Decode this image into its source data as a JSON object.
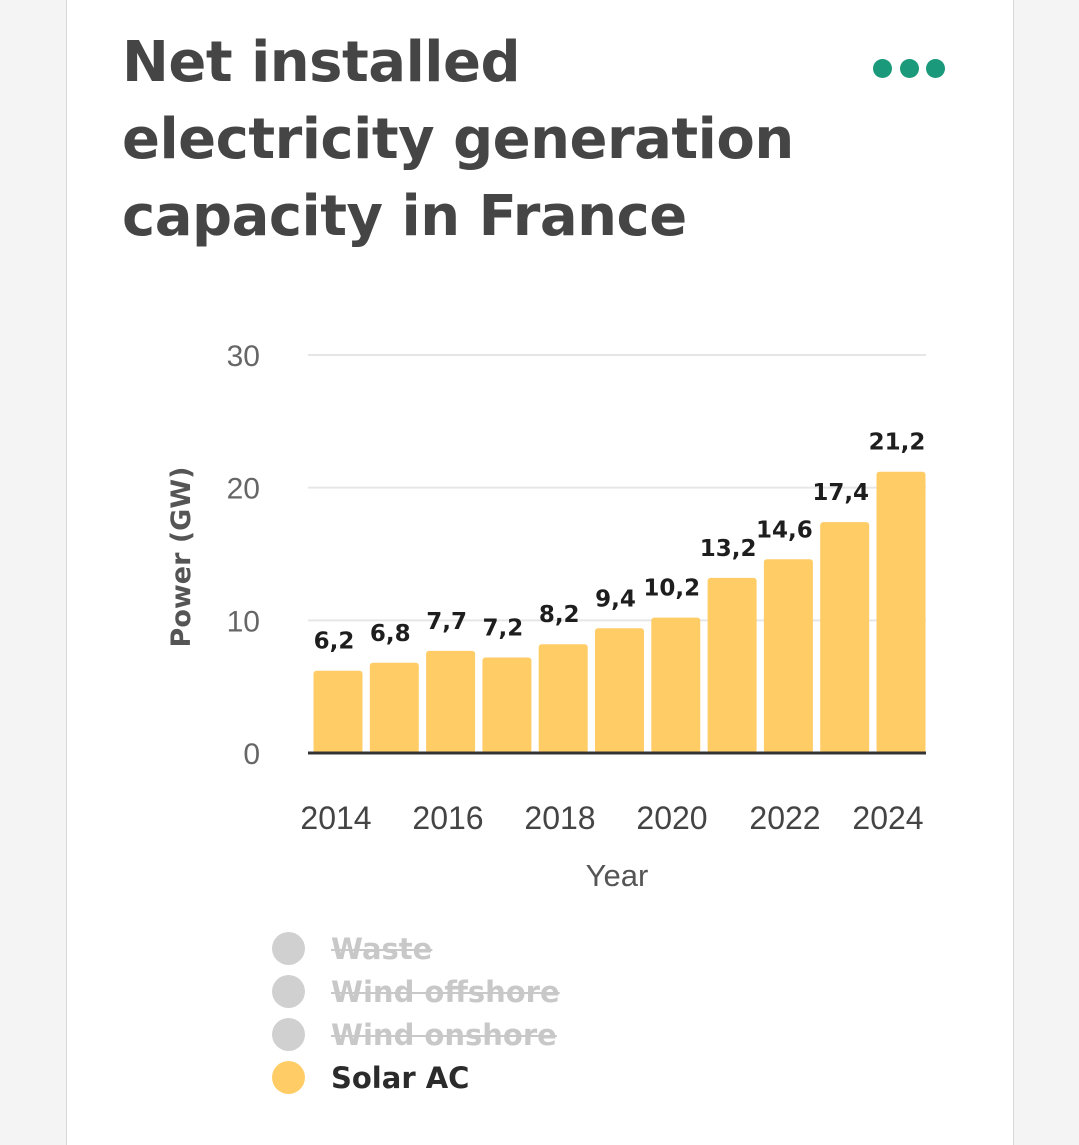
{
  "title": "Net installed electricity generation capacity in France",
  "colors": {
    "bar": "#ffcc66",
    "menu_dots": "#1a9a7a",
    "legend_disabled": "#d0d0d0",
    "gridline": "#e6e6e6",
    "axis": "#333333"
  },
  "menu": {
    "icon": "more-dots-icon"
  },
  "legend": [
    {
      "label": "Waste",
      "enabled": false
    },
    {
      "label": "Wind offshore",
      "enabled": false
    },
    {
      "label": "Wind onshore",
      "enabled": false
    },
    {
      "label": "Solar AC",
      "enabled": true
    }
  ],
  "chart_data": {
    "type": "bar",
    "title": "Net installed electricity generation capacity in France",
    "xlabel": "Year",
    "ylabel": "Power (GW)",
    "ylim": [
      0,
      30
    ],
    "yticks": [
      0,
      10,
      20,
      30
    ],
    "xtick_labels": [
      "2014",
      "2016",
      "2018",
      "2020",
      "2022",
      "2024"
    ],
    "categories": [
      "2014",
      "2015",
      "2016",
      "2017",
      "2018",
      "2019",
      "2020",
      "2021",
      "2022",
      "2023",
      "2024"
    ],
    "series": [
      {
        "name": "Solar AC",
        "values": [
          6.2,
          6.8,
          7.7,
          7.2,
          8.2,
          9.4,
          10.2,
          13.2,
          14.6,
          17.4,
          21.2
        ],
        "data_labels": [
          "6,2",
          "6,8",
          "7,7",
          "7,2",
          "8,2",
          "9,4",
          "10,2",
          "13,2",
          "14,6",
          "17,4",
          "21,2"
        ]
      }
    ],
    "grid": true,
    "legend_position": "bottom"
  }
}
